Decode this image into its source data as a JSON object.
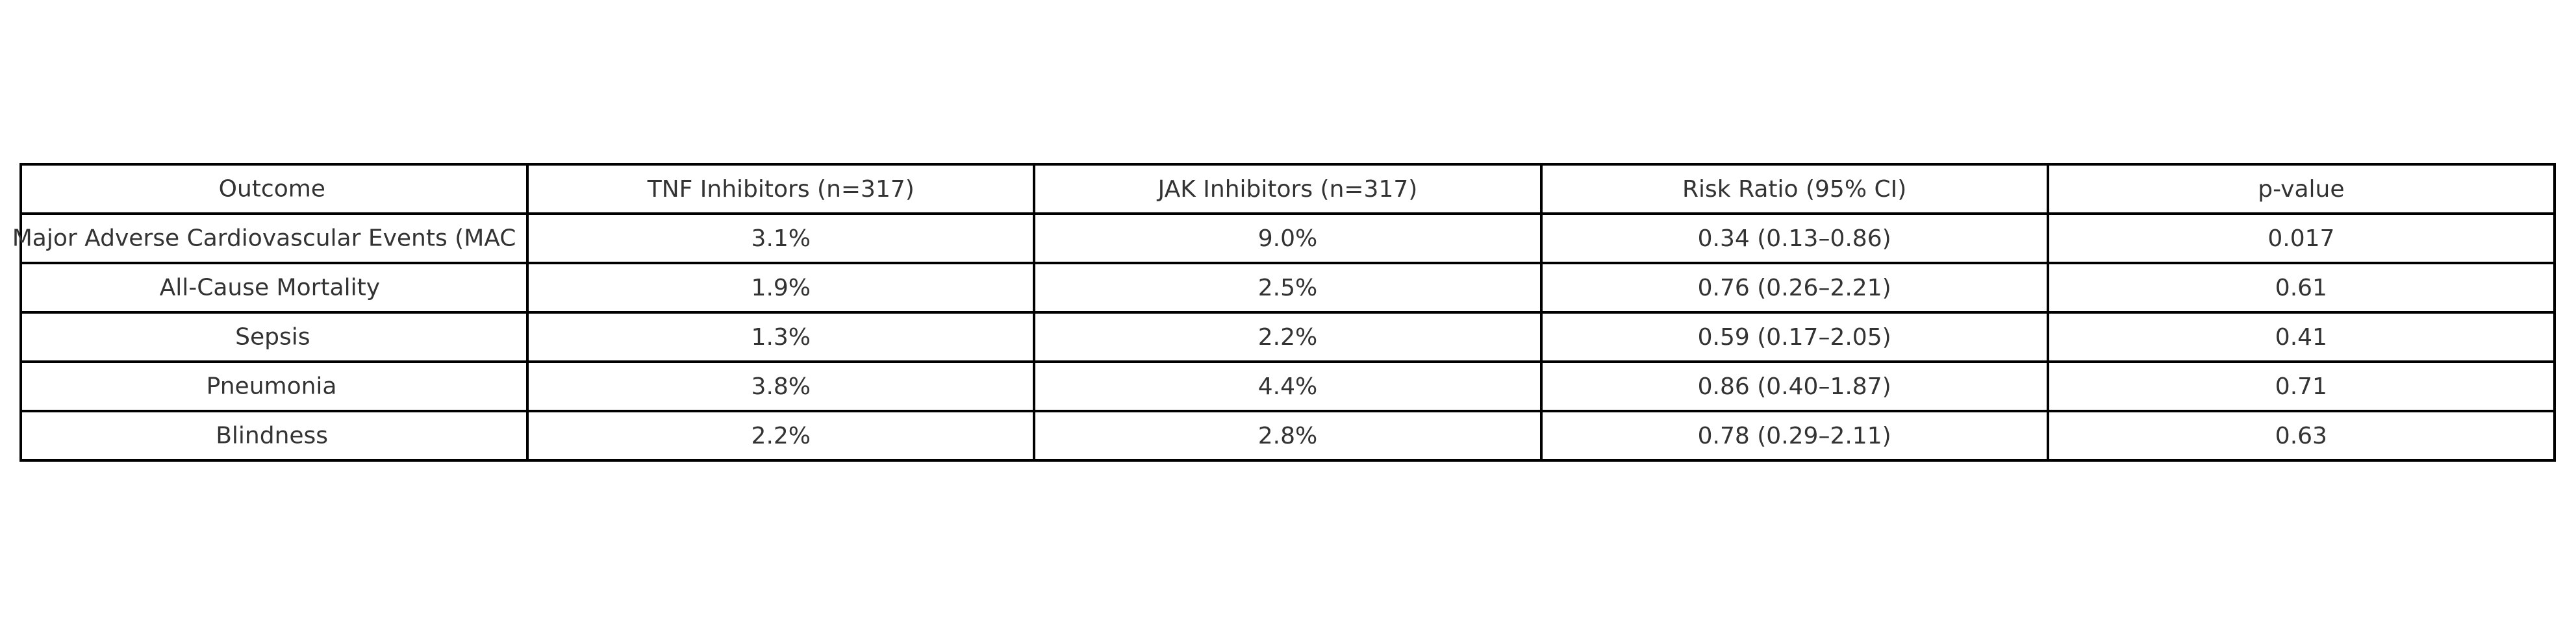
{
  "table": {
    "headers": [
      "Outcome",
      "TNF Inhibitors (n=317)",
      "JAK Inhibitors (n=317)",
      "Risk Ratio (95% CI)",
      "p-value"
    ],
    "rows": [
      [
        "Major Adverse Cardiovascular Events (MAC",
        "3.1%",
        "9.0%",
        "0.34 (0.13–0.86)",
        "0.017"
      ],
      [
        "All-Cause Mortality",
        "1.9%",
        "2.5%",
        "0.76 (0.26–2.21)",
        "0.61"
      ],
      [
        "Sepsis",
        "1.3%",
        "2.2%",
        "0.59 (0.17–2.05)",
        "0.41"
      ],
      [
        "Pneumonia",
        "3.8%",
        "4.4%",
        "0.86 (0.40–1.87)",
        "0.71"
      ],
      [
        "Blindness",
        "2.2%",
        "2.8%",
        "0.78 (0.29–2.11)",
        "0.63"
      ]
    ]
  }
}
